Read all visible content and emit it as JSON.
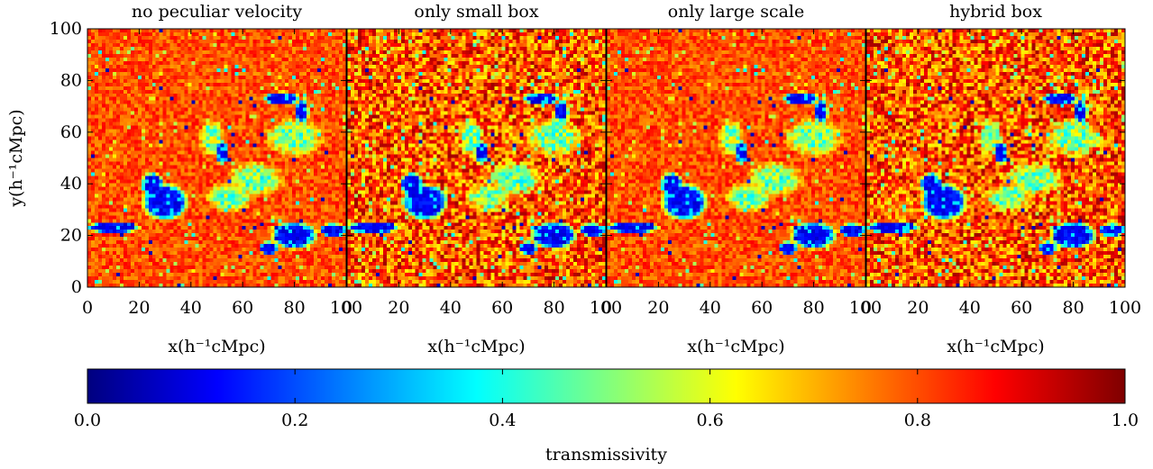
{
  "chart_data": {
    "type": "heatmap",
    "panels": [
      {
        "title": "no peculiar velocity",
        "variant": "smooth"
      },
      {
        "title": "only small box",
        "variant": "noisy"
      },
      {
        "title": "only large scale",
        "variant": "smooth"
      },
      {
        "title": "hybrid box",
        "variant": "noisy"
      }
    ],
    "xlabel": "x(h⁻¹cMpc)",
    "ylabel": "y(h⁻¹cMpc)",
    "xlim": [
      0,
      100
    ],
    "ylim": [
      0,
      100
    ],
    "x_ticks": [
      "0",
      "20",
      "40",
      "60",
      "80",
      "100"
    ],
    "y_ticks": [
      "0",
      "20",
      "40",
      "60",
      "80",
      "100"
    ],
    "grid": false,
    "colorbar": {
      "label": "transmissivity",
      "range": [
        0.0,
        1.0
      ],
      "ticks": [
        "0.0",
        "0.2",
        "0.4",
        "0.6",
        "0.8",
        "1.0"
      ],
      "colormap": "jet"
    },
    "dominant_value": 0.8,
    "ionized_regions_note_values": {
      "low_transmission_regions": [
        {
          "x": [
            15,
            45
          ],
          "y": [
            20,
            45
          ],
          "value": 0.05
        },
        {
          "x": [
            0,
            25
          ],
          "y": [
            18,
            26
          ],
          "value": 0.05
        },
        {
          "x": [
            65,
            100
          ],
          "y": [
            12,
            30
          ],
          "value": 0.08
        },
        {
          "x": [
            65,
            90
          ],
          "y": [
            62,
            80
          ],
          "value": 0.1
        }
      ],
      "intermediate_regions": [
        {
          "x": [
            40,
            95
          ],
          "y": [
            30,
            65
          ],
          "value": 0.55
        }
      ]
    }
  }
}
